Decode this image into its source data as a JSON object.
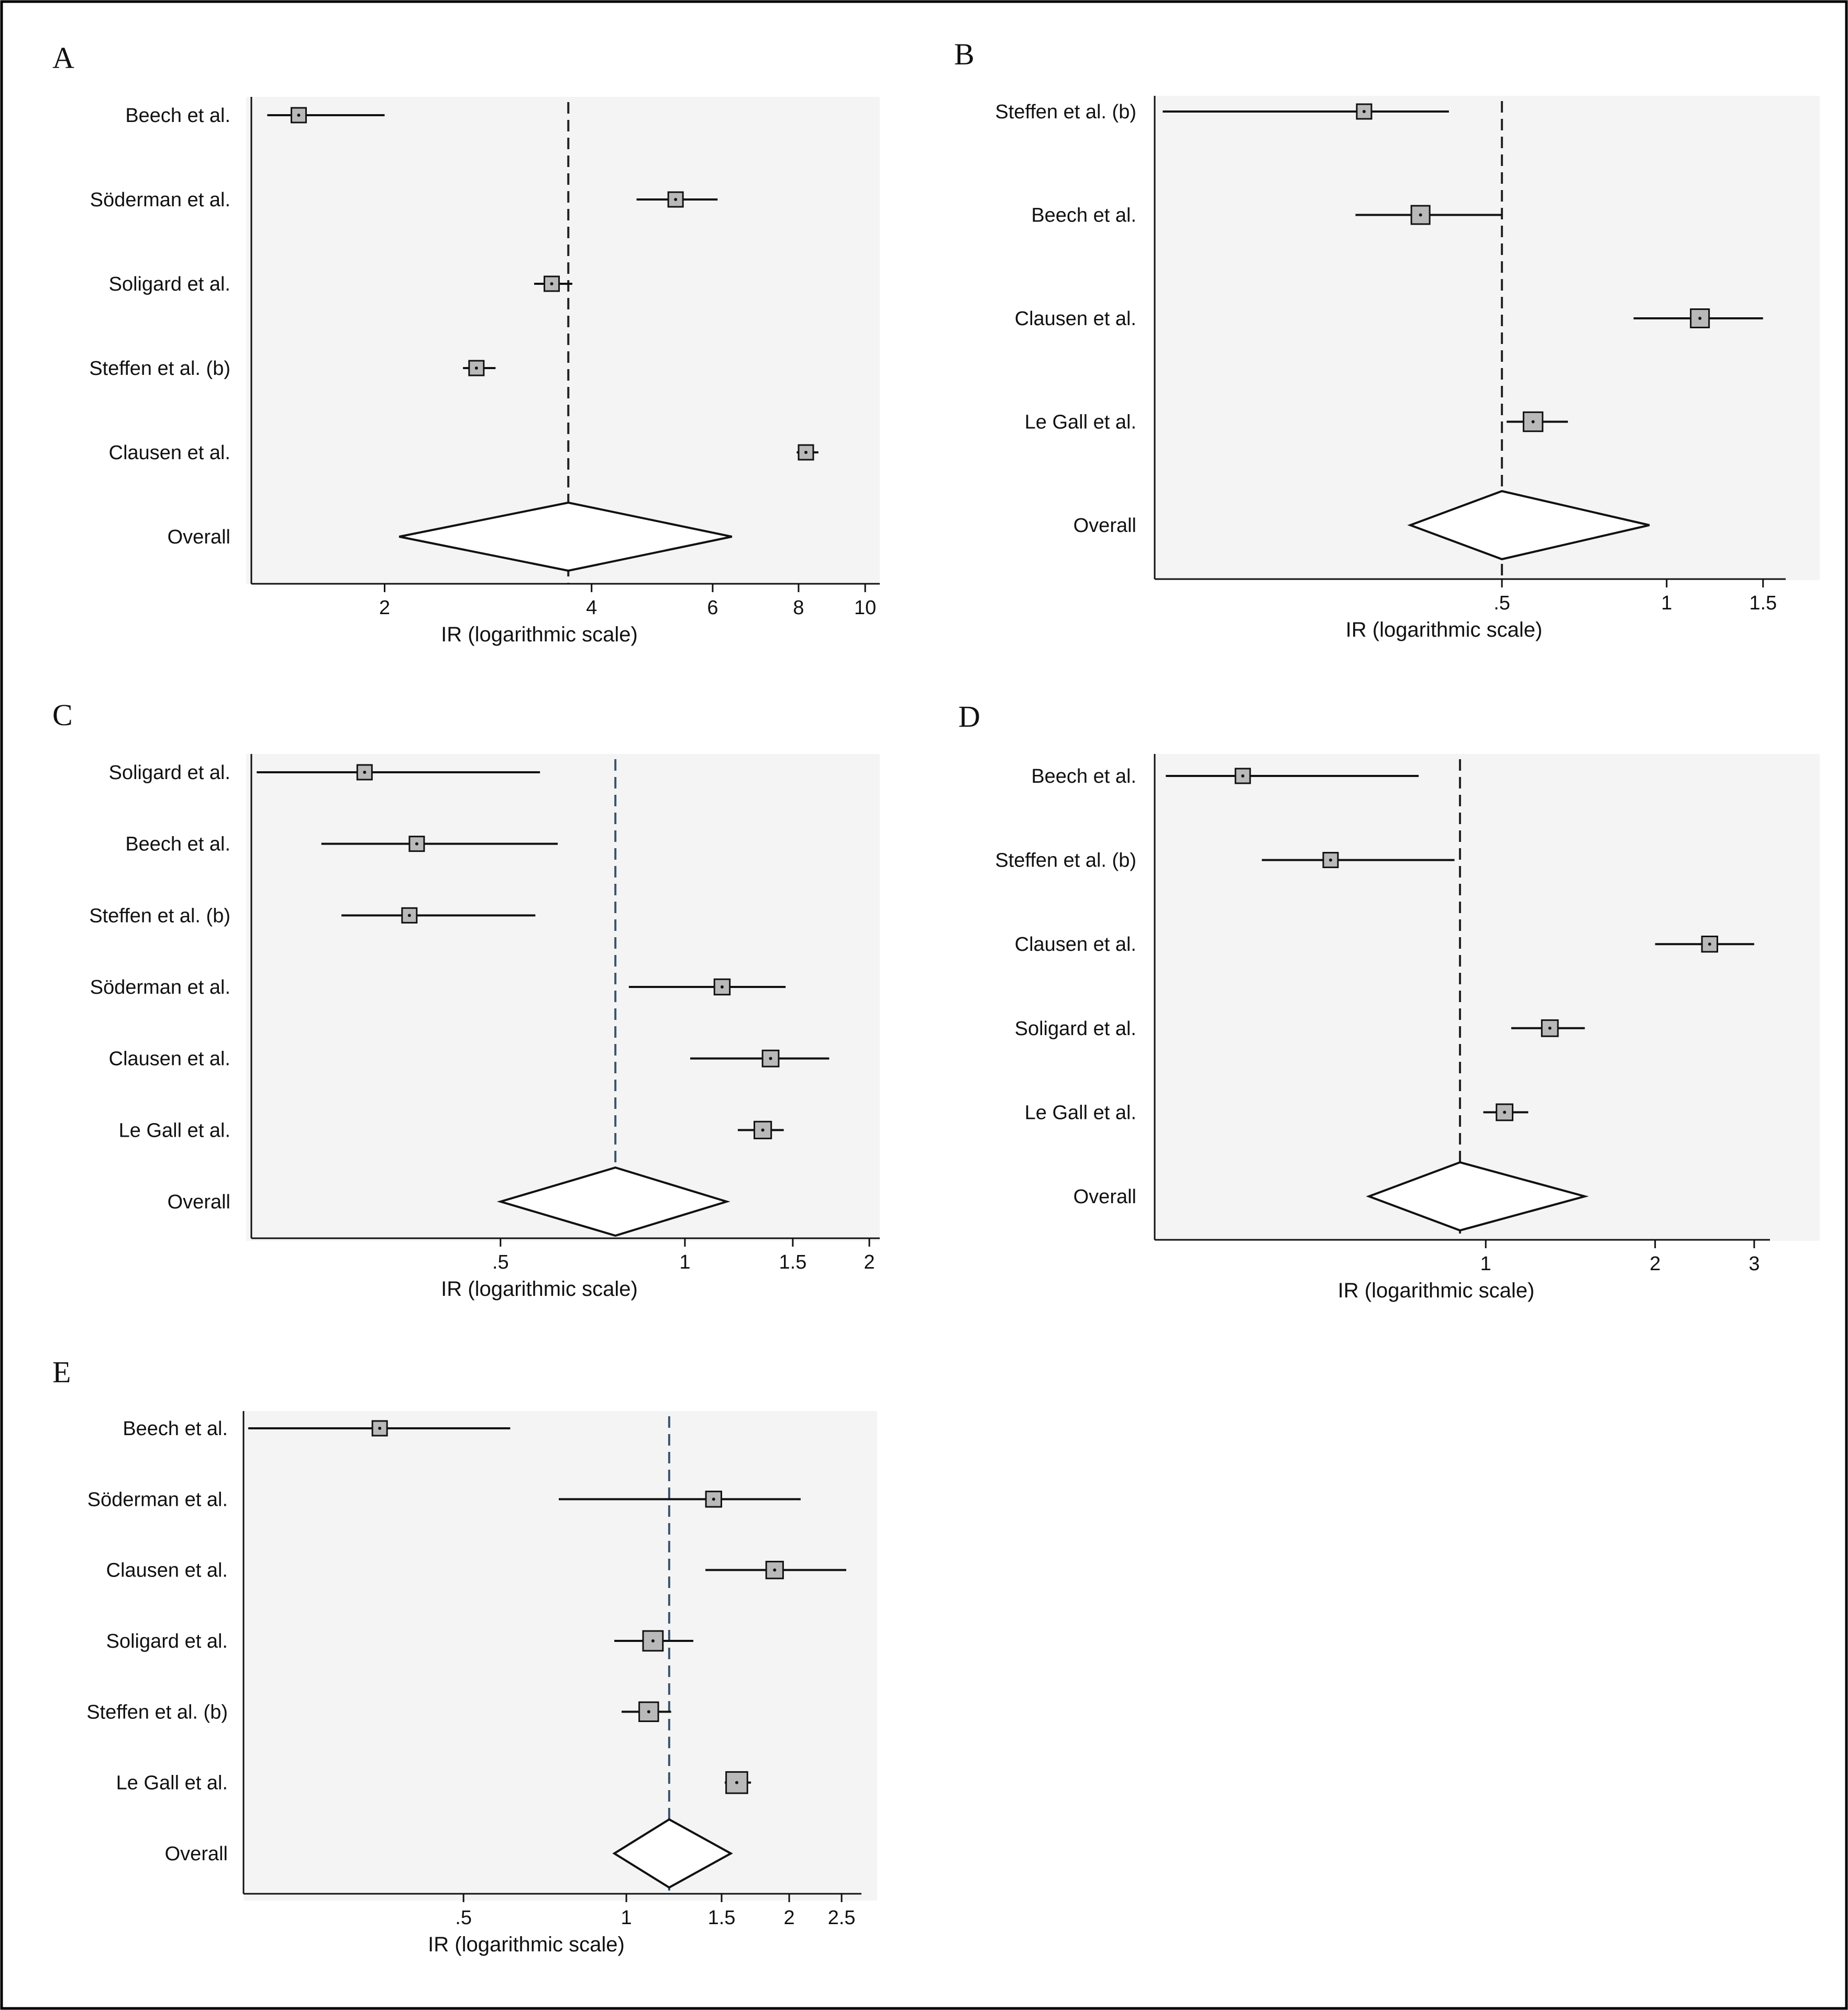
{
  "chart_data": [
    {
      "type": "forest",
      "panel": "A",
      "xlabel": "IR (logarithmic scale)",
      "xlim": [
        1.28,
        10.5
      ],
      "ticks": [
        {
          "v": 2,
          "label": "2"
        },
        {
          "v": 4,
          "label": "4"
        },
        {
          "v": 6,
          "label": "6"
        },
        {
          "v": 8,
          "label": "8"
        },
        {
          "v": 10,
          "label": "10"
        }
      ],
      "reference_line": 3.7,
      "studies": [
        {
          "label": "Beech et al.",
          "estimate": 1.5,
          "ci": [
            1.35,
            2.0
          ],
          "weight": 1.0
        },
        {
          "label": "Söderman et al.",
          "estimate": 5.3,
          "ci": [
            4.65,
            6.1
          ],
          "weight": 1.0
        },
        {
          "label": "Soligard et al.",
          "estimate": 3.5,
          "ci": [
            3.3,
            3.75
          ],
          "weight": 1.0
        },
        {
          "label": "Steffen et al. (b)",
          "estimate": 2.72,
          "ci": [
            2.6,
            2.9
          ],
          "weight": 1.0
        },
        {
          "label": "Clausen et al.",
          "estimate": 8.2,
          "ci": [
            7.95,
            8.55
          ],
          "weight": 1.0
        }
      ],
      "overall": {
        "label": "Overall",
        "estimate": 3.7,
        "ci": [
          2.1,
          6.4
        ]
      }
    },
    {
      "type": "forest",
      "panel": "B",
      "xlabel": "IR (logarithmic scale)",
      "xlim": [
        0.116,
        1.65
      ],
      "ticks": [
        {
          "v": 0.5,
          "label": ".5"
        },
        {
          "v": 1,
          "label": "1"
        },
        {
          "v": 1.5,
          "label": "1.5"
        }
      ],
      "reference_line": 0.5,
      "studies": [
        {
          "label": "Steffen et al. (b)",
          "estimate": 0.28,
          "ci": [
            0.12,
            0.4
          ],
          "weight": 1.0
        },
        {
          "label": "Beech et al.",
          "estimate": 0.355,
          "ci": [
            0.27,
            0.5
          ],
          "weight": 1.25
        },
        {
          "label": "Clausen et al.",
          "estimate": 1.15,
          "ci": [
            0.87,
            1.5
          ],
          "weight": 1.25
        },
        {
          "label": "Le Gall et al.",
          "estimate": 0.57,
          "ci": [
            0.51,
            0.66
          ],
          "weight": 1.3
        }
      ],
      "overall": {
        "label": "Overall",
        "estimate": 0.5,
        "ci": [
          0.34,
          0.93
        ]
      }
    },
    {
      "type": "forest",
      "panel": "C",
      "xlabel": "IR (logarithmic scale)",
      "xlim": [
        0.196,
        2.08
      ],
      "ticks": [
        {
          "v": 0.5,
          "label": ".5"
        },
        {
          "v": 1,
          "label": "1"
        },
        {
          "v": 1.5,
          "label": "1.5"
        },
        {
          "v": 2,
          "label": "2"
        }
      ],
      "reference_line": 0.77,
      "studies": [
        {
          "label": "Soligard et al.",
          "estimate": 0.3,
          "ci": [
            0.2,
            0.58
          ],
          "weight": 1.0
        },
        {
          "label": "Beech et al.",
          "estimate": 0.365,
          "ci": [
            0.255,
            0.62
          ],
          "weight": 1.0
        },
        {
          "label": "Steffen et al. (b)",
          "estimate": 0.355,
          "ci": [
            0.275,
            0.57
          ],
          "weight": 1.0
        },
        {
          "label": "Söderman et al.",
          "estimate": 1.15,
          "ci": [
            0.81,
            1.46
          ],
          "weight": 1.05
        },
        {
          "label": "Clausen et al.",
          "estimate": 1.38,
          "ci": [
            1.02,
            1.72
          ],
          "weight": 1.1
        },
        {
          "label": "Le Gall et al.",
          "estimate": 1.34,
          "ci": [
            1.22,
            1.45
          ],
          "weight": 1.15
        }
      ],
      "overall": {
        "label": "Overall",
        "estimate": 0.77,
        "ci": [
          0.5,
          1.17
        ]
      }
    },
    {
      "type": "forest",
      "panel": "D",
      "xlabel": "IR (logarithmic scale)",
      "xlim": [
        0.258,
        3.2
      ],
      "ticks": [
        {
          "v": 1,
          "label": "1"
        },
        {
          "v": 2,
          "label": "2"
        },
        {
          "v": 3,
          "label": "3"
        }
      ],
      "reference_line": 0.9,
      "studies": [
        {
          "label": "Beech et al.",
          "estimate": 0.37,
          "ci": [
            0.27,
            0.76
          ],
          "weight": 1.0
        },
        {
          "label": "Steffen et al. (b)",
          "estimate": 0.53,
          "ci": [
            0.4,
            0.88
          ],
          "weight": 1.0
        },
        {
          "label": "Clausen et al.",
          "estimate": 2.5,
          "ci": [
            2.0,
            3.0
          ],
          "weight": 1.05
        },
        {
          "label": "Soligard et al.",
          "estimate": 1.3,
          "ci": [
            1.11,
            1.5
          ],
          "weight": 1.1
        },
        {
          "label": "Le Gall et al.",
          "estimate": 1.08,
          "ci": [
            0.99,
            1.19
          ],
          "weight": 1.1
        }
      ],
      "overall": {
        "label": "Overall",
        "estimate": 0.9,
        "ci": [
          0.62,
          1.5
        ]
      }
    },
    {
      "type": "forest",
      "panel": "E",
      "xlabel": "IR (logarithmic scale)",
      "xlim": [
        0.196,
        2.72
      ],
      "ticks": [
        {
          "v": 0.5,
          "label": ".5"
        },
        {
          "v": 1,
          "label": "1"
        },
        {
          "v": 1.5,
          "label": "1.5"
        },
        {
          "v": 2,
          "label": "2"
        },
        {
          "v": 2.5,
          "label": "2.5"
        }
      ],
      "reference_line": 1.2,
      "studies": [
        {
          "label": "Beech et al.",
          "estimate": 0.35,
          "ci": [
            0.2,
            0.61
          ],
          "weight": 1.0
        },
        {
          "label": "Söderman et al.",
          "estimate": 1.45,
          "ci": [
            0.75,
            2.1
          ],
          "weight": 1.05
        },
        {
          "label": "Clausen et al.",
          "estimate": 1.88,
          "ci": [
            1.4,
            2.55
          ],
          "weight": 1.15
        },
        {
          "label": "Soligard et al.",
          "estimate": 1.12,
          "ci": [
            0.95,
            1.33
          ],
          "weight": 1.35
        },
        {
          "label": "Steffen et al. (b)",
          "estimate": 1.1,
          "ci": [
            0.98,
            1.21
          ],
          "weight": 1.3
        },
        {
          "label": "Le Gall et al.",
          "estimate": 1.6,
          "ci": [
            1.52,
            1.7
          ],
          "weight": 1.45
        }
      ],
      "overall": {
        "label": "Overall",
        "estimate": 1.2,
        "ci": [
          0.95,
          1.56
        ]
      }
    }
  ],
  "colors": {
    "frame": "#000000",
    "plot_background": "#f4f4f4",
    "marker_fill": "#b9b9b9",
    "line": "#111111",
    "reference_line": "#222222",
    "reference_line_blue": "#3b5470"
  }
}
